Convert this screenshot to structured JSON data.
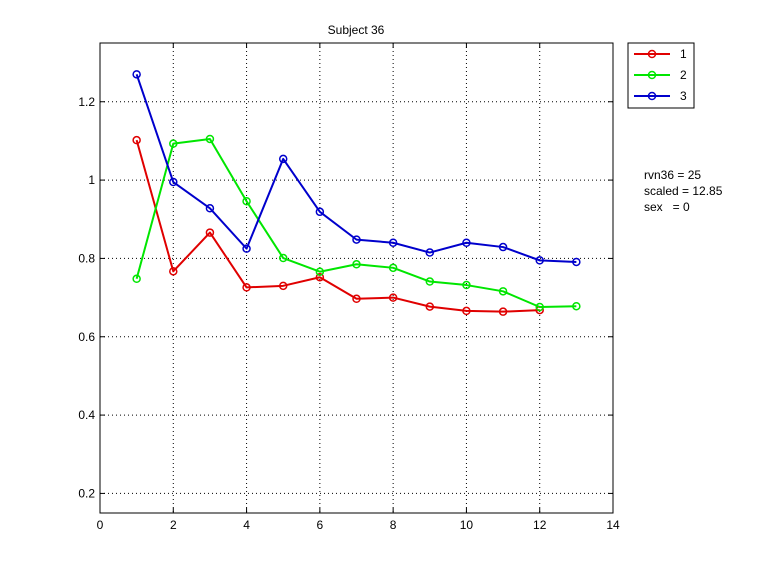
{
  "chart_data": {
    "type": "line",
    "title": "Subject 36",
    "xlabel": "",
    "ylabel": "",
    "xlim": [
      0,
      14
    ],
    "ylim": [
      0.15,
      1.35
    ],
    "xticks": [
      0,
      2,
      4,
      6,
      8,
      10,
      12,
      14
    ],
    "xtick_labels": [
      "0",
      "2",
      "4",
      "6",
      "8",
      "10",
      "12",
      "14"
    ],
    "yticks": [
      0.2,
      0.4,
      0.6,
      0.8,
      1.0,
      1.2
    ],
    "ytick_labels": [
      "0.2",
      "0.4",
      "0.6",
      "0.8",
      "1",
      "1.2"
    ],
    "grid": true,
    "legend_position": "outside-top-right",
    "series": [
      {
        "name": "1",
        "color": "#e00000",
        "marker": "circle-open",
        "x": [
          1,
          2,
          3,
          4,
          5,
          6,
          7,
          8,
          9,
          10,
          11,
          12
        ],
        "y": [
          1.102,
          0.767,
          0.866,
          0.726,
          0.73,
          0.752,
          0.697,
          0.7,
          0.677,
          0.666,
          0.664,
          0.668
        ]
      },
      {
        "name": "2",
        "color": "#00e600",
        "marker": "circle-open",
        "x": [
          1,
          2,
          3,
          4,
          5,
          6,
          7,
          8,
          9,
          10,
          11,
          12,
          13
        ],
        "y": [
          0.748,
          1.093,
          1.105,
          0.946,
          0.801,
          0.766,
          0.785,
          0.776,
          0.741,
          0.732,
          0.716,
          0.676,
          0.678
        ]
      },
      {
        "name": "3",
        "color": "#0000cc",
        "marker": "circle-open",
        "x": [
          1,
          2,
          3,
          4,
          5,
          6,
          7,
          8,
          9,
          10,
          11,
          12,
          13
        ],
        "y": [
          1.27,
          0.995,
          0.928,
          0.825,
          1.054,
          0.919,
          0.848,
          0.84,
          0.815,
          0.84,
          0.829,
          0.795,
          0.791
        ]
      }
    ],
    "annotations": [
      "rvn36 = 25",
      "scaled = 12.85",
      "sex   = 0"
    ]
  }
}
